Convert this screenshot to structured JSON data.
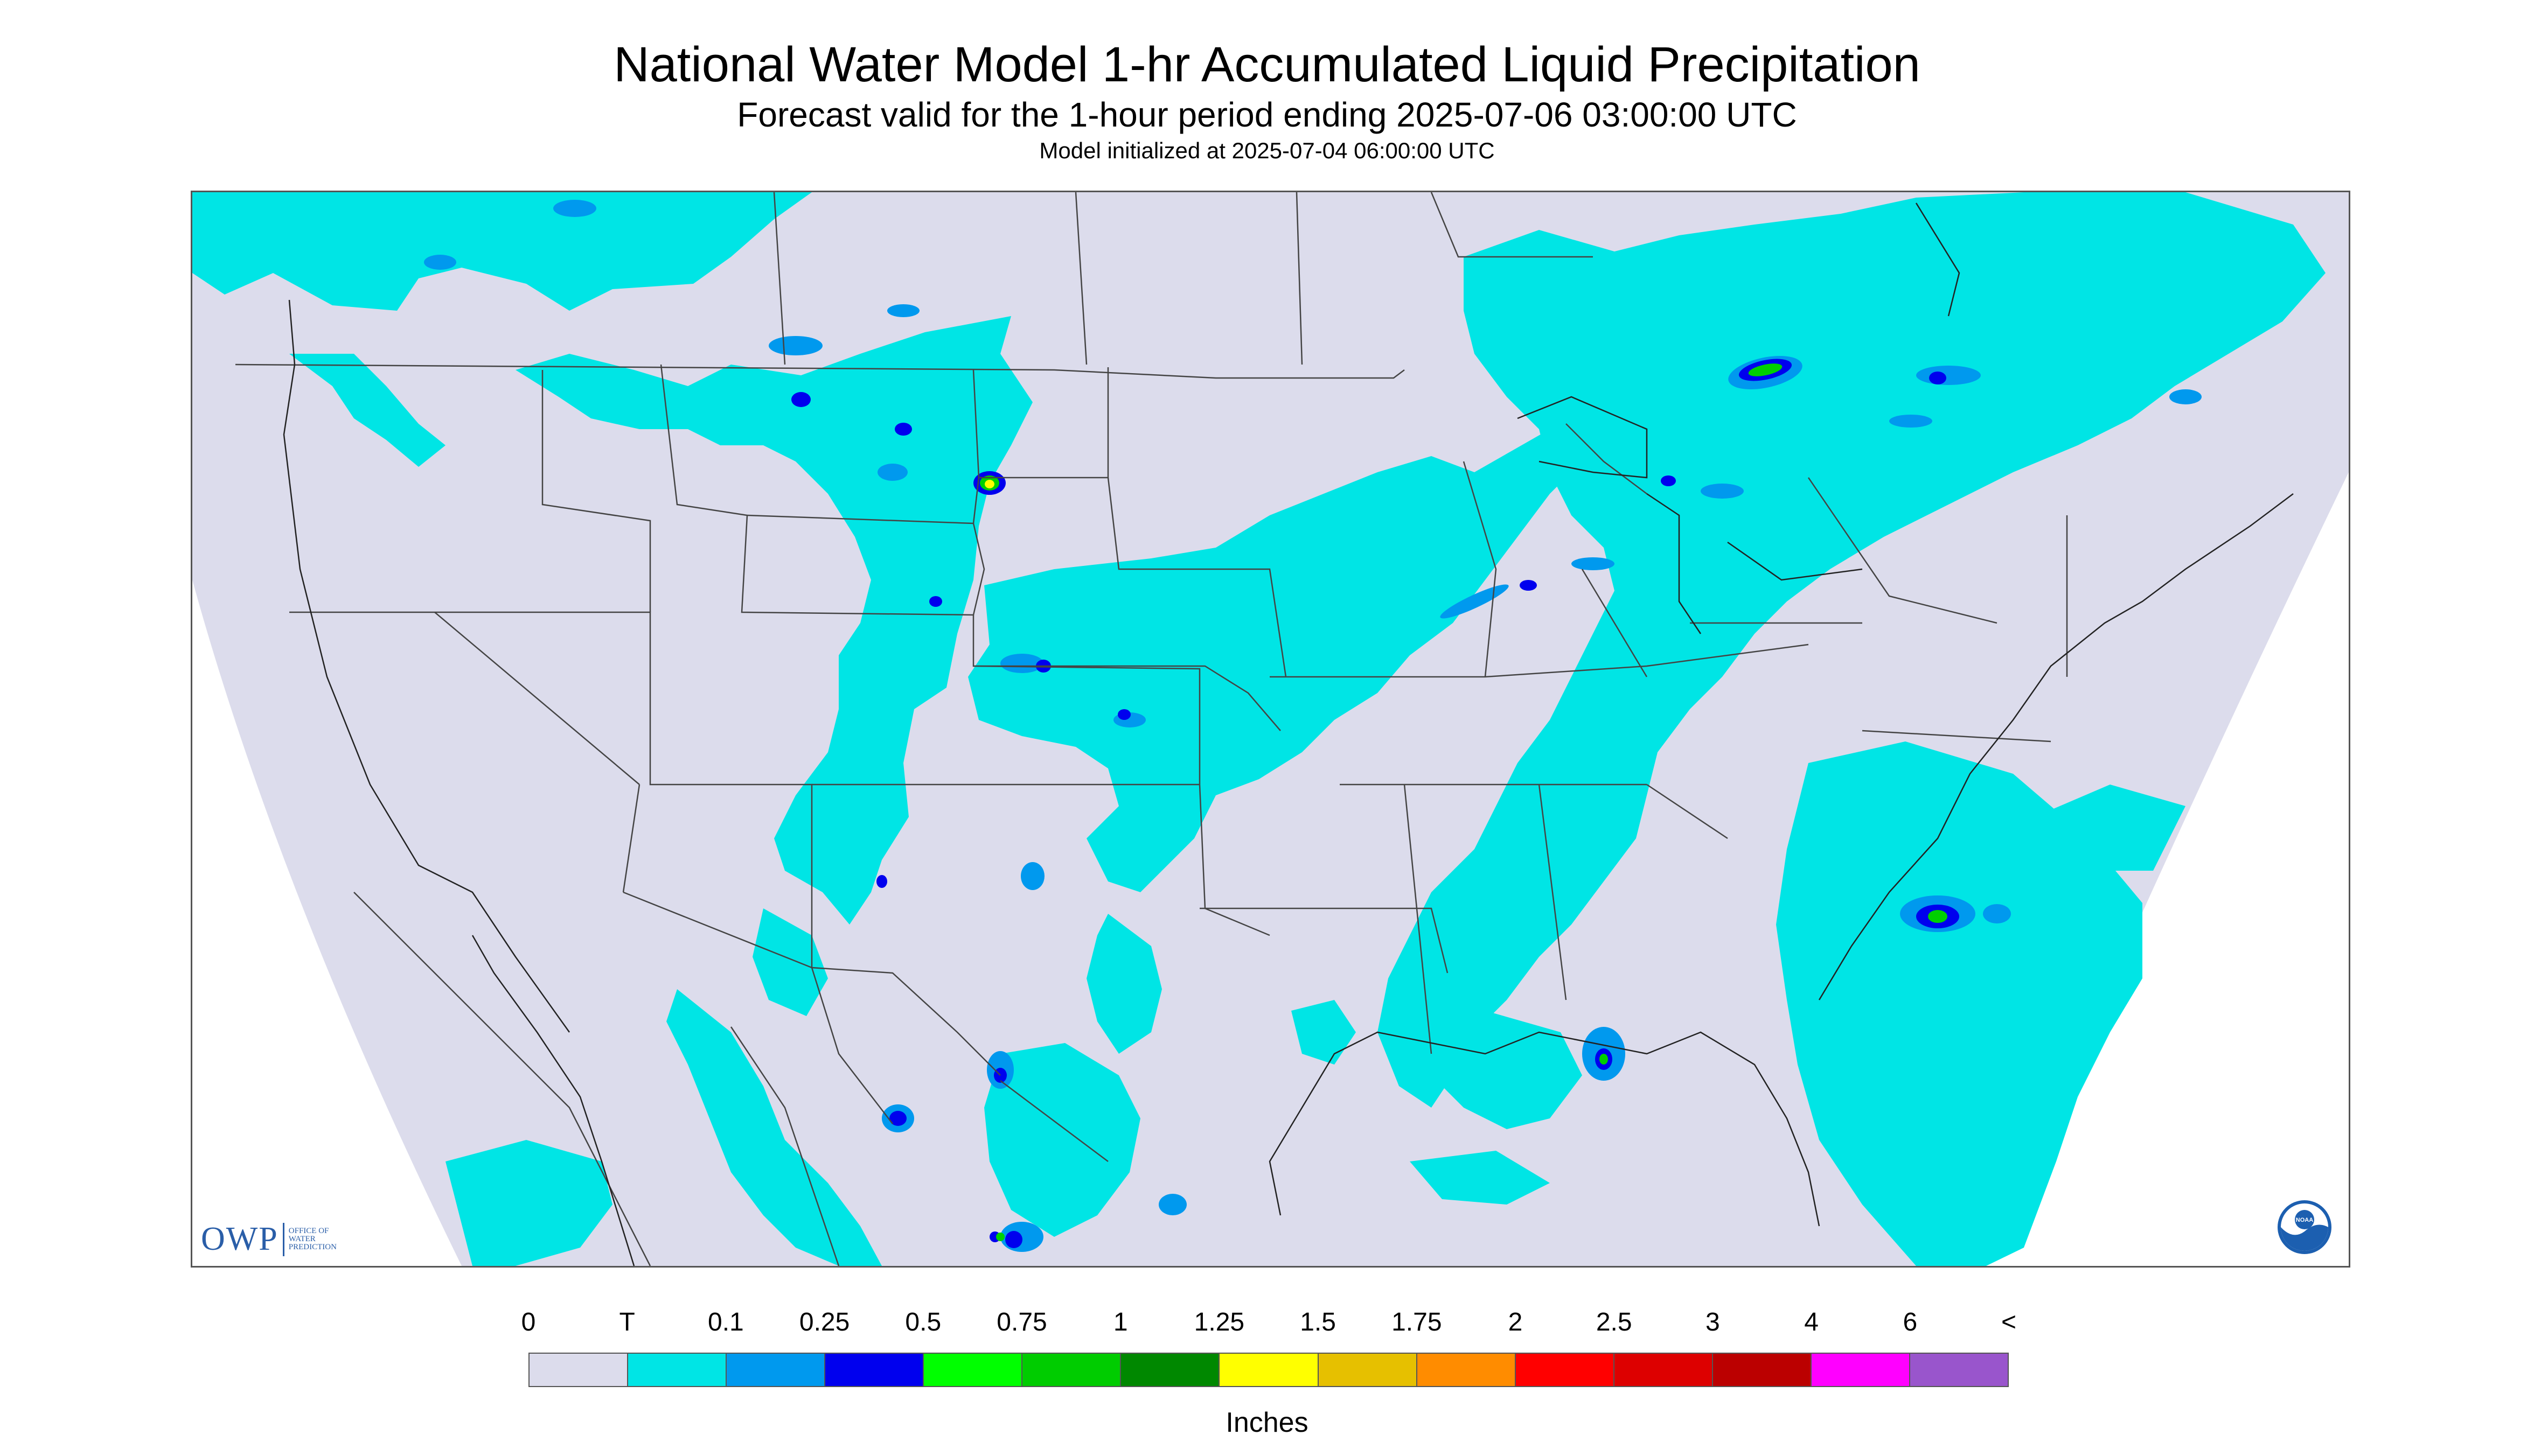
{
  "header": {
    "title": "National Water Model 1-hr Accumulated Liquid Precipitation",
    "subtitle": "Forecast valid for the 1-hour period ending 2025-07-06 03:00:00 UTC",
    "init_line": "Model initialized at 2025-07-04 06:00:00 UTC"
  },
  "map": {
    "outside_domain_color": "#ffffff",
    "land_color": "#dcdcec",
    "boundary_color": "#444444",
    "precip_light_color": "#00e5e5",
    "precip_mid_color": "#0099ee",
    "precip_heavy_color": "#0000ee",
    "precip_peak_color": "#00d000",
    "precip_max_color": "#ffff00"
  },
  "logos": {
    "owp_text": "OWP",
    "owp_sub": [
      "OFFICE OF",
      "WATER",
      "PREDICTION"
    ],
    "noaa_text": "NOAA",
    "noaa_icon": "noaa-emblem-icon"
  },
  "legend": {
    "tick_labels": [
      "0",
      "T",
      "0.1",
      "0.25",
      "0.5",
      "0.75",
      "1",
      "1.25",
      "1.5",
      "1.75",
      "2",
      "2.5",
      "3",
      "4",
      "6",
      "<"
    ],
    "colors": [
      "#dcdcec",
      "#00e5e5",
      "#0099ee",
      "#0000ee",
      "#00ff00",
      "#00cc00",
      "#008800",
      "#ffff00",
      "#e6c000",
      "#ff8c00",
      "#ff0000",
      "#dd0000",
      "#bb0000",
      "#ff00ff",
      "#9955cc"
    ],
    "units": "Inches"
  }
}
